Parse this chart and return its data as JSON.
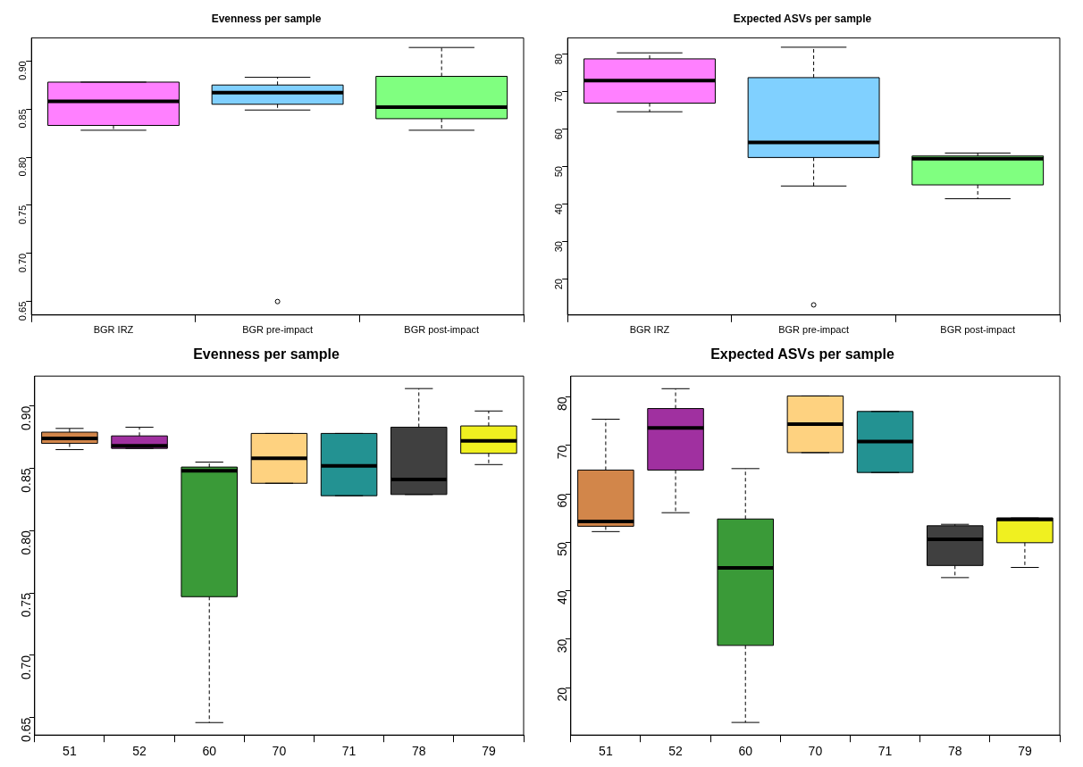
{
  "chart_data": [
    {
      "type": "box",
      "title": "Evenness per sample",
      "categories": [
        "BGR IRZ",
        "BGR pre-impact",
        "BGR post-impact"
      ],
      "colors": [
        "#ff80ff",
        "#80d0ff",
        "#80ff80"
      ],
      "ylim": [
        0.636,
        0.924
      ],
      "yticks": [
        0.65,
        {
          "value": 0.7,
          "label": "0.70"
        },
        0.75,
        {
          "value": 0.8,
          "label": "0.80"
        },
        0.85,
        {
          "value": 0.9,
          "label": "0.90"
        }
      ],
      "boxes": [
        {
          "low": 0.828,
          "q1": 0.833,
          "median": 0.858,
          "q3": 0.878,
          "high": 0.878
        },
        {
          "low": 0.849,
          "q1": 0.855,
          "median": 0.867,
          "q3": 0.875,
          "high": 0.883,
          "outliers": [
            0.65
          ]
        },
        {
          "low": 0.828,
          "q1": 0.84,
          "median": 0.852,
          "q3": 0.884,
          "high": 0.914
        }
      ]
    },
    {
      "type": "box",
      "title": "Expected ASVs per sample",
      "categories": [
        "BGR IRZ",
        "BGR pre-impact",
        "BGR post-impact"
      ],
      "colors": [
        "#ff80ff",
        "#80d0ff",
        "#80ff80"
      ],
      "ylim": [
        10.3,
        84.2
      ],
      "yticks": [
        20,
        30,
        40,
        50,
        60,
        70,
        80
      ],
      "boxes": [
        {
          "low": 64.5,
          "q1": 66.8,
          "median": 72.8,
          "q3": 78.6,
          "high": 80.2
        },
        {
          "low": 44.7,
          "q1": 52.3,
          "median": 56.3,
          "q3": 73.6,
          "high": 81.7,
          "outliers": [
            13
          ]
        },
        {
          "low": 41.3,
          "q1": 45,
          "median": 52,
          "q3": 52.7,
          "high": 53.5
        }
      ]
    },
    {
      "type": "box",
      "title": "Evenness per sample",
      "categories": [
        "51",
        "52",
        "60",
        "70",
        "71",
        "78",
        "79"
      ],
      "colors": [
        "#d2864a",
        "#a030a0",
        "#3a9a38",
        "#fed280",
        "#239292",
        "#404040",
        "#f0f020"
      ],
      "ylim": [
        0.636,
        0.924
      ],
      "yticks": [
        0.65,
        {
          "value": 0.7,
          "label": "0.70"
        },
        0.75,
        {
          "value": 0.8,
          "label": "0.80"
        },
        0.85,
        {
          "value": 0.9,
          "label": "0.90"
        }
      ],
      "boxes": [
        {
          "low": 0.865,
          "q1": 0.87,
          "median": 0.874,
          "q3": 0.879,
          "high": 0.882
        },
        {
          "low": 0.866,
          "q1": 0.866,
          "median": 0.868,
          "q3": 0.876,
          "high": 0.883
        },
        {
          "low": 0.646,
          "q1": 0.747,
          "median": 0.848,
          "q3": 0.851,
          "high": 0.855
        },
        {
          "low": 0.838,
          "q1": 0.838,
          "median": 0.858,
          "q3": 0.878,
          "high": 0.878
        },
        {
          "low": 0.828,
          "q1": 0.828,
          "median": 0.852,
          "q3": 0.878,
          "high": 0.878
        },
        {
          "low": 0.829,
          "q1": 0.829,
          "median": 0.841,
          "q3": 0.883,
          "high": 0.914
        },
        {
          "low": 0.853,
          "q1": 0.862,
          "median": 0.872,
          "q3": 0.884,
          "high": 0.896
        }
      ]
    },
    {
      "type": "box",
      "title": "Expected ASVs per sample",
      "categories": [
        "51",
        "52",
        "60",
        "70",
        "71",
        "78",
        "79"
      ],
      "colors": [
        "#d2864a",
        "#a030a0",
        "#3a9a38",
        "#fed280",
        "#239292",
        "#404040",
        "#f0f020"
      ],
      "ylim": [
        10.2,
        84.3
      ],
      "yticks": [
        20,
        30,
        40,
        50,
        60,
        70,
        80
      ],
      "boxes": [
        {
          "low": 52.2,
          "q1": 53.3,
          "median": 54.3,
          "q3": 64.9,
          "high": 75.4
        },
        {
          "low": 56.1,
          "q1": 64.9,
          "median": 73.6,
          "q3": 77.6,
          "high": 81.7
        },
        {
          "low": 12.8,
          "q1": 28.7,
          "median": 44.7,
          "q3": 54.8,
          "high": 65.2
        },
        {
          "low": 68.5,
          "q1": 68.5,
          "median": 74.4,
          "q3": 80.2,
          "high": 80.2
        },
        {
          "low": 64.4,
          "q1": 64.4,
          "median": 70.8,
          "q3": 77,
          "high": 77
        },
        {
          "low": 42.7,
          "q1": 45.2,
          "median": 50.6,
          "q3": 53.4,
          "high": 53.7
        },
        {
          "low": 44.8,
          "q1": 49.9,
          "median": 54.7,
          "q3": 55,
          "high": 55
        }
      ]
    }
  ]
}
